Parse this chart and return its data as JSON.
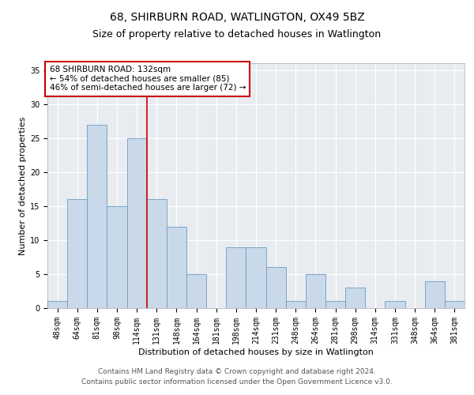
{
  "title": "68, SHIRBURN ROAD, WATLINGTON, OX49 5BZ",
  "subtitle": "Size of property relative to detached houses in Watlington",
  "xlabel": "Distribution of detached houses by size in Watlington",
  "ylabel": "Number of detached properties",
  "categories": [
    "48sqm",
    "64sqm",
    "81sqm",
    "98sqm",
    "114sqm",
    "131sqm",
    "148sqm",
    "164sqm",
    "181sqm",
    "198sqm",
    "214sqm",
    "231sqm",
    "248sqm",
    "264sqm",
    "281sqm",
    "298sqm",
    "314sqm",
    "331sqm",
    "348sqm",
    "364sqm",
    "381sqm"
  ],
  "values": [
    1,
    16,
    27,
    15,
    25,
    16,
    12,
    5,
    0,
    9,
    9,
    6,
    1,
    5,
    1,
    3,
    0,
    1,
    0,
    4,
    1
  ],
  "bar_color": "#c9d9ea",
  "bar_edgecolor": "#6b9dc0",
  "vline_color": "#cc0000",
  "vline_x_index": 5,
  "annotation_title": "68 SHIRBURN ROAD: 132sqm",
  "annotation_line1": "← 54% of detached houses are smaller (85)",
  "annotation_line2": "46% of semi-detached houses are larger (72) →",
  "annotation_box_edgecolor": "#cc0000",
  "ylim": [
    0,
    36
  ],
  "yticks": [
    0,
    5,
    10,
    15,
    20,
    25,
    30,
    35
  ],
  "background_color": "#e8ecf1",
  "footer1": "Contains HM Land Registry data © Crown copyright and database right 2024.",
  "footer2": "Contains public sector information licensed under the Open Government Licence v3.0.",
  "title_fontsize": 10,
  "subtitle_fontsize": 9,
  "axis_label_fontsize": 8,
  "tick_fontsize": 7,
  "annotation_fontsize": 7.5,
  "footer_fontsize": 6.5
}
